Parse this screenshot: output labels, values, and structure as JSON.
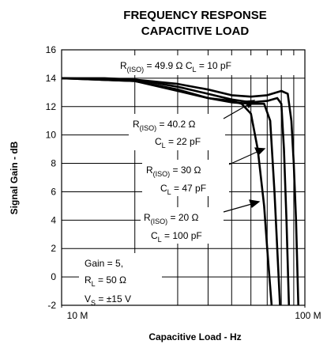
{
  "chart_data": {
    "type": "line",
    "title": [
      "FREQUENCY RESPONSE",
      "CAPACITIVE LOAD"
    ],
    "x_label": "Capacitive Load - Hz",
    "y_label": "Signal Gain - dB",
    "xscale": "log",
    "xlim": [
      10000000,
      100000000
    ],
    "xticks": [
      {
        "value": 10000000,
        "label": "10 M"
      },
      {
        "value": 100000000,
        "label": "100 M"
      }
    ],
    "xminor": [
      20000000,
      30000000,
      40000000,
      50000000,
      60000000,
      70000000,
      80000000,
      90000000
    ],
    "ylim": [
      -2,
      16
    ],
    "yticks": [
      -2,
      0,
      2,
      4,
      6,
      8,
      10,
      12,
      14,
      16
    ],
    "grid": true,
    "series": [
      {
        "color": "#000000",
        "x": [
          10000000,
          15000000,
          20000000,
          30000000,
          40000000,
          50000000,
          60000000,
          70000000,
          80000000,
          85000000,
          88000000,
          90000000,
          92000000,
          94000000
        ],
        "values": [
          14,
          14,
          13.9,
          13.6,
          13.2,
          12.8,
          12.7,
          12.8,
          13.1,
          12.9,
          11,
          8,
          4,
          -2
        ]
      },
      {
        "color": "#000000",
        "x": [
          10000000,
          20000000,
          30000000,
          40000000,
          50000000,
          60000000,
          70000000,
          77000000,
          80000000,
          82000000,
          84000000,
          86000000
        ],
        "values": [
          14,
          13.9,
          13.4,
          12.9,
          12.5,
          12.3,
          12.4,
          12.6,
          12.2,
          9,
          4,
          -2
        ]
      },
      {
        "color": "#000000",
        "x": [
          10000000,
          20000000,
          30000000,
          40000000,
          50000000,
          60000000,
          68000000,
          72000000,
          75000000,
          77000000,
          79000000
        ],
        "values": [
          14,
          13.8,
          13.2,
          12.6,
          12.3,
          12.2,
          12.2,
          11,
          6,
          2,
          -2
        ]
      },
      {
        "color": "#000000",
        "x": [
          10000000,
          20000000,
          30000000,
          40000000,
          50000000,
          55000000,
          60000000,
          64000000,
          68000000,
          70000000,
          73000000
        ],
        "values": [
          14,
          13.8,
          13.1,
          12.6,
          12.4,
          12.2,
          11.5,
          9,
          5,
          2,
          -2
        ]
      }
    ],
    "annotations": [
      {
        "lines": [
          [
            {
              "text": "R"
            },
            {
              "sub": "(ISO)"
            },
            {
              "text": " = 49.9 Ω C"
            },
            {
              "sub": "L"
            },
            {
              "text": " = 10 pF"
            }
          ]
        ]
      },
      {
        "lines": [
          [
            {
              "text": "R"
            },
            {
              "sub": "(ISO)"
            },
            {
              "text": " = 40.2 Ω"
            }
          ],
          [
            {
              "text": "C"
            },
            {
              "sub": "L"
            },
            {
              "text": " = 22 pF"
            }
          ]
        ]
      },
      {
        "lines": [
          [
            {
              "text": "R"
            },
            {
              "sub": "(ISO)"
            },
            {
              "text": " = 30 Ω"
            }
          ],
          [
            {
              "text": "C"
            },
            {
              "sub": "L"
            },
            {
              "text": " = 47 pF"
            }
          ]
        ]
      },
      {
        "lines": [
          [
            {
              "text": "R"
            },
            {
              "sub": "(ISO)"
            },
            {
              "text": " = 20 Ω"
            }
          ],
          [
            {
              "text": "C"
            },
            {
              "sub": "L"
            },
            {
              "text": " = 100 pF"
            }
          ]
        ]
      },
      {
        "lines": [
          [
            {
              "text": "Gain = 5,"
            }
          ],
          [
            {
              "text": "R"
            },
            {
              "sub": "L"
            },
            {
              "text": " = 50 Ω"
            }
          ],
          [
            {
              "text": "V"
            },
            {
              "sub": "S"
            },
            {
              "text": " = ±15 V"
            }
          ]
        ]
      }
    ]
  }
}
